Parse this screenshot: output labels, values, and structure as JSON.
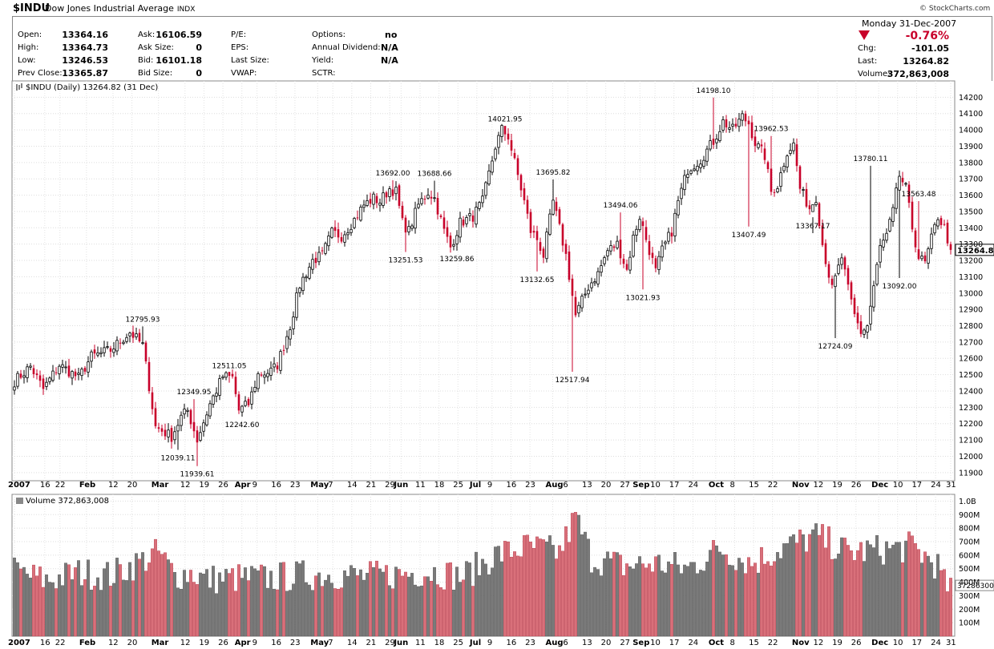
{
  "header": {
    "symbol": "$INDU",
    "name": "Dow Jones Industrial Average",
    "exchange": "INDX",
    "logo": "© StockCharts.com",
    "date": "Monday  31-Dec-2007",
    "pct_change": "-0.76%",
    "down_color": "#c8002a",
    "up_color": "#000000"
  },
  "quote": {
    "col1": [
      {
        "label": "Open:",
        "value": "13364.16"
      },
      {
        "label": "High:",
        "value": "13364.73"
      },
      {
        "label": "Low:",
        "value": "13246.53"
      },
      {
        "label": "Prev Close:",
        "value": "13365.87"
      }
    ],
    "col2": [
      {
        "label": "Ask:",
        "value": "16106.59"
      },
      {
        "label": "Ask Size:",
        "value": "0"
      },
      {
        "label": "Bid:",
        "value": "16101.18"
      },
      {
        "label": "Bid Size:",
        "value": "0"
      }
    ],
    "col3": [
      {
        "label": "P/E:",
        "value": ""
      },
      {
        "label": "EPS:",
        "value": ""
      },
      {
        "label": "Last Size:",
        "value": ""
      },
      {
        "label": "VWAP:",
        "value": ""
      }
    ],
    "col4": [
      {
        "label": "Options:",
        "value": "no"
      },
      {
        "label": "Annual Dividend:",
        "value": "N/A"
      },
      {
        "label": "Yield:",
        "value": "N/A"
      },
      {
        "label": "SCTR:",
        "value": ""
      }
    ],
    "col5": [
      {
        "label": "Chg:",
        "value": "-101.05"
      },
      {
        "label": "Last:",
        "value": "13264.82"
      },
      {
        "label": "Volume:",
        "value": "372,863,008"
      }
    ]
  },
  "chart_data": [
    {
      "type": "candlestick",
      "title": "$INDU (Daily) 13264.82 (31 Dec)",
      "ylim": [
        11850,
        14300
      ],
      "yticks": [
        11900,
        12000,
        12100,
        12200,
        12300,
        12400,
        12500,
        12600,
        12700,
        12800,
        12900,
        13000,
        13100,
        13200,
        13300,
        13400,
        13500,
        13600,
        13700,
        13800,
        13900,
        14000,
        14100,
        14200
      ],
      "last_value": "13264.82",
      "anchors": [
        [
          0,
          12460
        ],
        [
          5,
          12550
        ],
        [
          9,
          12410
        ],
        [
          14,
          12560
        ],
        [
          20,
          12480
        ],
        [
          24,
          12610
        ],
        [
          30,
          12650
        ],
        [
          36,
          12760
        ],
        [
          40,
          12680
        ],
        [
          44,
          12180
        ],
        [
          49,
          12120
        ],
        [
          52,
          12240
        ],
        [
          54,
          12280
        ],
        [
          57,
          12100
        ],
        [
          61,
          12320
        ],
        [
          65,
          12490
        ],
        [
          68,
          12480
        ],
        [
          70,
          12280
        ],
        [
          73,
          12320
        ],
        [
          76,
          12500
        ],
        [
          80,
          12520
        ],
        [
          82,
          12560
        ],
        [
          86,
          12800
        ],
        [
          89,
          13050
        ],
        [
          93,
          13200
        ],
        [
          96,
          13230
        ],
        [
          99,
          13370
        ],
        [
          102,
          13350
        ],
        [
          106,
          13450
        ],
        [
          109,
          13540
        ],
        [
          112,
          13580
        ],
        [
          114,
          13560
        ],
        [
          117,
          13640
        ],
        [
          119,
          13620
        ],
        [
          121,
          13430
        ],
        [
          123,
          13380
        ],
        [
          126,
          13540
        ],
        [
          129,
          13620
        ],
        [
          131,
          13580
        ],
        [
          134,
          13380
        ],
        [
          136,
          13280
        ],
        [
          139,
          13430
        ],
        [
          143,
          13470
        ],
        [
          146,
          13560
        ],
        [
          150,
          13900
        ],
        [
          152,
          14000
        ],
        [
          154,
          13960
        ],
        [
          157,
          13720
        ],
        [
          159,
          13560
        ],
        [
          161,
          13380
        ],
        [
          163,
          13330
        ],
        [
          165,
          13230
        ],
        [
          168,
          13560
        ],
        [
          172,
          13230
        ],
        [
          175,
          12860
        ],
        [
          179,
          13040
        ],
        [
          182,
          13120
        ],
        [
          185,
          13260
        ],
        [
          188,
          13300
        ],
        [
          191,
          13140
        ],
        [
          193,
          13340
        ],
        [
          195,
          13470
        ],
        [
          197,
          13330
        ],
        [
          200,
          13130
        ],
        [
          202,
          13260
        ],
        [
          205,
          13380
        ],
        [
          207,
          13560
        ],
        [
          210,
          13760
        ],
        [
          214,
          13820
        ],
        [
          218,
          13930
        ],
        [
          221,
          14050
        ],
        [
          224,
          14000
        ],
        [
          227,
          14080
        ],
        [
          229,
          14040
        ],
        [
          231,
          13920
        ],
        [
          234,
          13840
        ],
        [
          236,
          13620
        ],
        [
          238,
          13660
        ],
        [
          241,
          13870
        ],
        [
          243,
          13910
        ],
        [
          245,
          13640
        ],
        [
          248,
          13520
        ],
        [
          250,
          13590
        ],
        [
          252,
          13300
        ],
        [
          255,
          13020
        ],
        [
          258,
          13220
        ],
        [
          260,
          13020
        ],
        [
          262,
          12860
        ],
        [
          264,
          12760
        ],
        [
          266,
          12800
        ],
        [
          268,
          13040
        ],
        [
          270,
          13280
        ],
        [
          272,
          13350
        ],
        [
          274,
          13500
        ],
        [
          276,
          13720
        ],
        [
          278,
          13640
        ],
        [
          280,
          13400
        ],
        [
          282,
          13220
        ],
        [
          284,
          13180
        ],
        [
          286,
          13330
        ],
        [
          288,
          13470
        ],
        [
          290,
          13400
        ],
        [
          292,
          13264.82
        ]
      ],
      "annotations": [
        {
          "i": 40,
          "value": 12795.93,
          "text": "12795.93",
          "pos": "above"
        },
        {
          "i": 51,
          "value": 12039.11,
          "text": "12039.11",
          "pos": "below"
        },
        {
          "i": 56,
          "value": 12349.95,
          "text": "12349.95",
          "pos": "above"
        },
        {
          "i": 57,
          "value": 11939.61,
          "text": "11939.61",
          "pos": "below"
        },
        {
          "i": 67,
          "value": 12511.05,
          "text": "12511.05",
          "pos": "above"
        },
        {
          "i": 71,
          "value": 12242.6,
          "text": "12242.60",
          "pos": "below"
        },
        {
          "i": 118,
          "value": 13692.0,
          "text": "13692.00",
          "pos": "above"
        },
        {
          "i": 122,
          "value": 13251.53,
          "text": "13251.53",
          "pos": "below"
        },
        {
          "i": 131,
          "value": 13688.66,
          "text": "13688.66",
          "pos": "above"
        },
        {
          "i": 138,
          "value": 13259.86,
          "text": "13259.86",
          "pos": "below"
        },
        {
          "i": 153,
          "value": 14021.95,
          "text": "14021.95",
          "pos": "above"
        },
        {
          "i": 163,
          "value": 13132.65,
          "text": "13132.65",
          "pos": "below"
        },
        {
          "i": 168,
          "value": 13695.82,
          "text": "13695.82",
          "pos": "above"
        },
        {
          "i": 174,
          "value": 12517.94,
          "text": "12517.94",
          "pos": "below"
        },
        {
          "i": 189,
          "value": 13494.06,
          "text": "13494.06",
          "pos": "above"
        },
        {
          "i": 196,
          "value": 13021.93,
          "text": "13021.93",
          "pos": "below"
        },
        {
          "i": 218,
          "value": 14198.1,
          "text": "14198.10",
          "pos": "above"
        },
        {
          "i": 229,
          "value": 13407.49,
          "text": "13407.49",
          "pos": "below"
        },
        {
          "i": 236,
          "value": 13962.53,
          "text": "13962.53",
          "pos": "above"
        },
        {
          "i": 249,
          "value": 13367.17,
          "text": "13367.17",
          "pos": "above"
        },
        {
          "i": 256,
          "value": 12724.09,
          "text": "12724.09",
          "pos": "below"
        },
        {
          "i": 267,
          "value": 13780.11,
          "text": "13780.11",
          "pos": "above"
        },
        {
          "i": 276,
          "value": 13092.0,
          "text": "13092.00",
          "pos": "below"
        },
        {
          "i": 282,
          "value": 13563.48,
          "text": "13563.48",
          "pos": "above"
        }
      ]
    },
    {
      "type": "bar",
      "title": "Volume 372,863,008",
      "ylim": [
        0,
        1050
      ],
      "unit": "millions",
      "ytick_values": [
        100,
        200,
        300,
        400,
        500,
        600,
        700,
        800,
        900,
        1000
      ],
      "ytick_labels": [
        "100M",
        "200M",
        "300M",
        "400M",
        "500M",
        "600M",
        "700M",
        "800M",
        "900M",
        "1.0B"
      ],
      "last_value": "372863008",
      "anchors": [
        [
          0,
          480
        ],
        [
          10,
          410
        ],
        [
          20,
          470
        ],
        [
          30,
          450
        ],
        [
          40,
          560
        ],
        [
          45,
          620
        ],
        [
          50,
          450
        ],
        [
          55,
          470
        ],
        [
          60,
          420
        ],
        [
          70,
          430
        ],
        [
          80,
          430
        ],
        [
          90,
          450
        ],
        [
          100,
          460
        ],
        [
          110,
          440
        ],
        [
          120,
          460
        ],
        [
          130,
          480
        ],
        [
          140,
          440
        ],
        [
          150,
          600
        ],
        [
          160,
          660
        ],
        [
          170,
          620
        ],
        [
          175,
          880
        ],
        [
          180,
          580
        ],
        [
          190,
          520
        ],
        [
          200,
          540
        ],
        [
          210,
          500
        ],
        [
          220,
          650
        ],
        [
          230,
          540
        ],
        [
          240,
          660
        ],
        [
          250,
          740
        ],
        [
          260,
          620
        ],
        [
          270,
          640
        ],
        [
          280,
          660
        ],
        [
          286,
          560
        ],
        [
          288,
          520
        ],
        [
          290,
          380
        ],
        [
          292,
          372
        ]
      ]
    }
  ],
  "x_axis": {
    "ticks": [
      {
        "i": 0,
        "text": "2007",
        "bold": true
      },
      {
        "i": 8,
        "text": "16",
        "bold": false
      },
      {
        "i": 12,
        "text": "22",
        "bold": false
      },
      {
        "i": 19,
        "text": "Feb",
        "bold": true
      },
      {
        "i": 26,
        "text": "12",
        "bold": false
      },
      {
        "i": 31,
        "text": "20",
        "bold": false
      },
      {
        "i": 38,
        "text": "Mar",
        "bold": true
      },
      {
        "i": 45,
        "text": "12",
        "bold": false
      },
      {
        "i": 50,
        "text": "19",
        "bold": false
      },
      {
        "i": 55,
        "text": "26",
        "bold": false
      },
      {
        "i": 60,
        "text": "Apr",
        "bold": true
      },
      {
        "i": 64,
        "text": "9",
        "bold": false
      },
      {
        "i": 69,
        "text": "16",
        "bold": false
      },
      {
        "i": 74,
        "text": "23",
        "bold": false
      },
      {
        "i": 80,
        "text": "May",
        "bold": true
      },
      {
        "i": 84,
        "text": "7",
        "bold": false
      },
      {
        "i": 89,
        "text": "14",
        "bold": false
      },
      {
        "i": 94,
        "text": "21",
        "bold": false
      },
      {
        "i": 99,
        "text": "29",
        "bold": false
      },
      {
        "i": 102,
        "text": "Jun",
        "bold": true
      },
      {
        "i": 107,
        "text": "11",
        "bold": false
      },
      {
        "i": 112,
        "text": "18",
        "bold": false
      },
      {
        "i": 117,
        "text": "25",
        "bold": false
      },
      {
        "i": 122,
        "text": "Jul",
        "bold": true
      },
      {
        "i": 126,
        "text": "9",
        "bold": false
      },
      {
        "i": 131,
        "text": "16",
        "bold": false
      },
      {
        "i": 136,
        "text": "23",
        "bold": false
      },
      {
        "i": 142,
        "text": "Aug",
        "bold": true
      },
      {
        "i": 146,
        "text": "6",
        "bold": false
      },
      {
        "i": 151,
        "text": "13",
        "bold": false
      },
      {
        "i": 156,
        "text": "20",
        "bold": false
      },
      {
        "i": 161,
        "text": "27",
        "bold": false
      },
      {
        "i": 165,
        "text": "Sep",
        "bold": true
      },
      {
        "i": 169,
        "text": "10",
        "bold": false
      },
      {
        "i": 174,
        "text": "17",
        "bold": false
      },
      {
        "i": 179,
        "text": "24",
        "bold": false
      },
      {
        "i": 185,
        "text": "Oct",
        "bold": true
      },
      {
        "i": 190,
        "text": "8",
        "bold": false
      },
      {
        "i": 195,
        "text": "15",
        "bold": false
      },
      {
        "i": 200,
        "text": "22",
        "bold": false
      },
      {
        "i": 207,
        "text": "Nov",
        "bold": true
      },
      {
        "i": 212,
        "text": "12",
        "bold": false
      },
      {
        "i": 217,
        "text": "19",
        "bold": false
      },
      {
        "i": 222,
        "text": "26",
        "bold": false
      },
      {
        "i": 228,
        "text": "Dec",
        "bold": true
      },
      {
        "i": 233,
        "text": "10",
        "bold": false
      },
      {
        "i": 238,
        "text": "17",
        "bold": false
      },
      {
        "i": 243,
        "text": "24",
        "bold": false
      },
      {
        "i": 247,
        "text": "31",
        "bold": false
      }
    ]
  }
}
